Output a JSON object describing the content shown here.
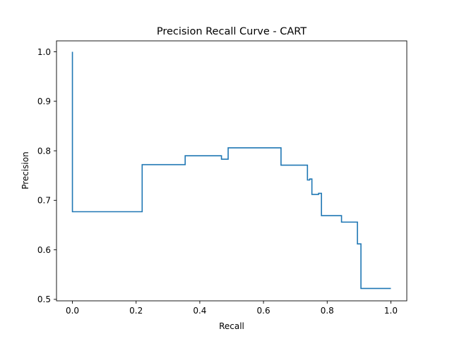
{
  "chart_data": {
    "type": "line",
    "title": "Precision Recall Curve - CART",
    "xlabel": "Recall",
    "ylabel": "Precision",
    "xlim": [
      -0.05,
      1.05
    ],
    "ylim": [
      0.497,
      1.022
    ],
    "xticks": [
      0.0,
      0.2,
      0.4,
      0.6,
      0.8,
      1.0
    ],
    "xtick_labels": [
      "0.0",
      "0.2",
      "0.4",
      "0.6",
      "0.8",
      "1.0"
    ],
    "yticks": [
      0.5,
      0.6,
      0.7,
      0.8,
      0.9,
      1.0
    ],
    "ytick_labels": [
      "0.5",
      "0.6",
      "0.7",
      "0.8",
      "0.9",
      "1.0"
    ],
    "grid": false,
    "series": [
      {
        "color": "#1f77b4",
        "step": "post",
        "x": [
          0.0,
          0.0,
          0.0,
          0.219,
          0.219,
          0.354,
          0.354,
          0.468,
          0.468,
          0.489,
          0.489,
          0.655,
          0.655,
          0.738,
          0.738,
          0.745,
          0.745,
          0.752,
          0.752,
          0.773,
          0.773,
          0.782,
          0.782,
          0.845,
          0.845,
          0.895,
          0.895,
          0.906,
          0.906,
          1.0
        ],
        "y": [
          1.0,
          0.677,
          0.677,
          0.677,
          0.772,
          0.772,
          0.79,
          0.79,
          0.783,
          0.783,
          0.806,
          0.806,
          0.771,
          0.771,
          0.741,
          0.741,
          0.743,
          0.743,
          0.712,
          0.712,
          0.714,
          0.714,
          0.669,
          0.669,
          0.656,
          0.656,
          0.612,
          0.612,
          0.522,
          0.522
        ]
      }
    ]
  }
}
